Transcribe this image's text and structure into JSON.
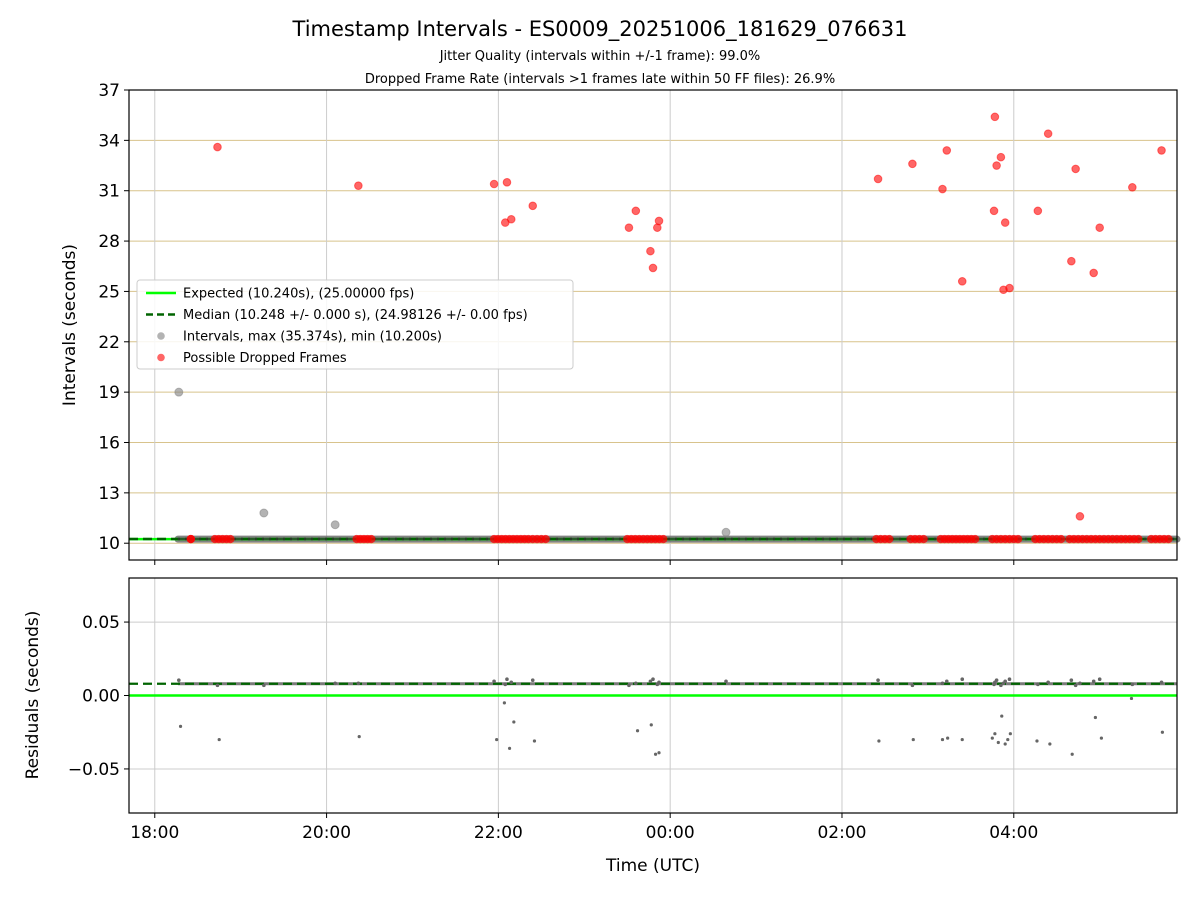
{
  "chart_data": [
    {
      "type": "scatter",
      "title": "Timestamp Intervals - ES0009_20251006_181629_076631",
      "subtitle_1": "Jitter Quality (intervals within +/-1 frame): 99.0%",
      "subtitle_2": "Dropped Frame Rate (intervals >1 frames late within 50 FF files): 26.9%",
      "ylabel": "Intervals (seconds)",
      "xlim_hours": [
        17.7,
        29.9
      ],
      "ylim": [
        9.0,
        37.0
      ],
      "yticks": [
        10,
        13,
        16,
        19,
        22,
        25,
        28,
        31,
        34,
        37
      ],
      "ytick_labels": [
        "10",
        "13",
        "16",
        "19",
        "22",
        "25",
        "28",
        "31",
        "34",
        "37"
      ],
      "xticks_hours": [
        18,
        20,
        22,
        24,
        26,
        28
      ],
      "grid": true,
      "legend_position": "center-left",
      "legend": [
        {
          "label": "Expected (10.240s), (25.00000 fps)",
          "style": "solid-line",
          "color": "#00ff00"
        },
        {
          "label": "Median (10.248 +/- 0.000 s), (24.98126 +/- 0.00 fps)",
          "style": "dashed-line",
          "color": "#006400"
        },
        {
          "label": "Intervals, max (35.374s), min (10.200s)",
          "style": "marker",
          "color": "#808080"
        },
        {
          "label": "Possible Dropped Frames",
          "style": "marker",
          "color": "#ff0000"
        }
      ],
      "expected_value": 10.24,
      "median_value": 10.248,
      "normal_interval_span_hours": [
        18.27,
        29.9
      ],
      "gray_outliers": [
        {
          "x": 18.28,
          "y": 19.0
        },
        {
          "x": 19.27,
          "y": 11.8
        },
        {
          "x": 20.1,
          "y": 11.1
        },
        {
          "x": 24.65,
          "y": 10.65
        }
      ],
      "dropped_frames_high": [
        {
          "x": 18.73,
          "y": 33.6
        },
        {
          "x": 20.37,
          "y": 31.3
        },
        {
          "x": 21.95,
          "y": 31.4
        },
        {
          "x": 22.1,
          "y": 31.5
        },
        {
          "x": 22.08,
          "y": 29.1
        },
        {
          "x": 22.15,
          "y": 29.3
        },
        {
          "x": 22.4,
          "y": 30.1
        },
        {
          "x": 23.52,
          "y": 28.8
        },
        {
          "x": 23.6,
          "y": 29.8
        },
        {
          "x": 23.77,
          "y": 27.4
        },
        {
          "x": 23.8,
          "y": 26.4
        },
        {
          "x": 23.85,
          "y": 28.8
        },
        {
          "x": 23.87,
          "y": 29.2
        },
        {
          "x": 26.42,
          "y": 31.7
        },
        {
          "x": 26.82,
          "y": 32.6
        },
        {
          "x": 27.17,
          "y": 31.1
        },
        {
          "x": 27.22,
          "y": 33.4
        },
        {
          "x": 27.4,
          "y": 25.6
        },
        {
          "x": 27.77,
          "y": 29.8
        },
        {
          "x": 27.78,
          "y": 35.4
        },
        {
          "x": 27.8,
          "y": 32.5
        },
        {
          "x": 27.85,
          "y": 33.0
        },
        {
          "x": 27.88,
          "y": 25.1
        },
        {
          "x": 27.9,
          "y": 29.1
        },
        {
          "x": 27.95,
          "y": 25.2
        },
        {
          "x": 28.28,
          "y": 29.8
        },
        {
          "x": 28.4,
          "y": 34.4
        },
        {
          "x": 28.67,
          "y": 26.8
        },
        {
          "x": 28.72,
          "y": 32.3
        },
        {
          "x": 28.77,
          "y": 11.6
        },
        {
          "x": 28.93,
          "y": 26.1
        },
        {
          "x": 29.0,
          "y": 28.8
        },
        {
          "x": 29.38,
          "y": 31.2
        },
        {
          "x": 29.72,
          "y": 33.4
        }
      ],
      "dropped_frame_clusters_near_baseline": [
        [
          18.42,
          18.42
        ],
        [
          18.7,
          18.88
        ],
        [
          20.35,
          20.52
        ],
        [
          21.95,
          22.35
        ],
        [
          22.4,
          22.55
        ],
        [
          23.5,
          23.92
        ],
        [
          26.4,
          26.55
        ],
        [
          26.8,
          26.95
        ],
        [
          27.15,
          27.55
        ],
        [
          27.75,
          28.05
        ],
        [
          28.25,
          28.55
        ],
        [
          28.65,
          28.9
        ],
        [
          28.95,
          29.25
        ],
        [
          29.3,
          29.45
        ],
        [
          29.6,
          29.8
        ]
      ]
    },
    {
      "type": "scatter",
      "ylabel": "Residuals (seconds)",
      "xlabel": "Time (UTC)",
      "ylim": [
        -0.08,
        0.08
      ],
      "yticks": [
        0.05,
        0.0,
        -0.05
      ],
      "ytick_labels": [
        "0.05",
        "0.00",
        "−0.05"
      ],
      "xticks_hours": [
        18,
        20,
        22,
        24,
        26,
        28
      ],
      "xtick_labels": [
        "18:00",
        "20:00",
        "22:00",
        "00:00",
        "02:00",
        "04:00"
      ],
      "grid": true,
      "expected_residual": 0.0,
      "median_residual": 0.008,
      "baseline_residual_span_hours": [
        18.27,
        29.9
      ],
      "residual_outliers": [
        {
          "x": 18.3,
          "y": -0.021
        },
        {
          "x": 18.75,
          "y": -0.03
        },
        {
          "x": 20.38,
          "y": -0.028
        },
        {
          "x": 21.98,
          "y": -0.03
        },
        {
          "x": 22.07,
          "y": -0.005
        },
        {
          "x": 22.13,
          "y": -0.036
        },
        {
          "x": 22.18,
          "y": -0.018
        },
        {
          "x": 22.42,
          "y": -0.031
        },
        {
          "x": 23.62,
          "y": -0.024
        },
        {
          "x": 23.78,
          "y": -0.02
        },
        {
          "x": 23.83,
          "y": -0.04
        },
        {
          "x": 23.87,
          "y": -0.039
        },
        {
          "x": 26.43,
          "y": -0.031
        },
        {
          "x": 26.83,
          "y": -0.03
        },
        {
          "x": 27.17,
          "y": -0.03
        },
        {
          "x": 27.23,
          "y": -0.029
        },
        {
          "x": 27.4,
          "y": -0.03
        },
        {
          "x": 27.75,
          "y": -0.029
        },
        {
          "x": 27.78,
          "y": -0.026
        },
        {
          "x": 27.82,
          "y": -0.032
        },
        {
          "x": 27.86,
          "y": -0.014
        },
        {
          "x": 27.9,
          "y": -0.033
        },
        {
          "x": 27.93,
          "y": -0.03
        },
        {
          "x": 27.96,
          "y": -0.026
        },
        {
          "x": 28.27,
          "y": -0.031
        },
        {
          "x": 28.42,
          "y": -0.033
        },
        {
          "x": 28.68,
          "y": -0.04
        },
        {
          "x": 28.95,
          "y": -0.015
        },
        {
          "x": 29.02,
          "y": -0.029
        },
        {
          "x": 29.37,
          "y": -0.002
        },
        {
          "x": 29.73,
          "y": -0.025
        }
      ]
    }
  ],
  "colors": {
    "expected": "#00ff00",
    "median": "#006400",
    "intervals": "#808080",
    "dropped": "#ff0000",
    "hgrid_top": "#d8c38c",
    "grid": "#cccccc"
  }
}
